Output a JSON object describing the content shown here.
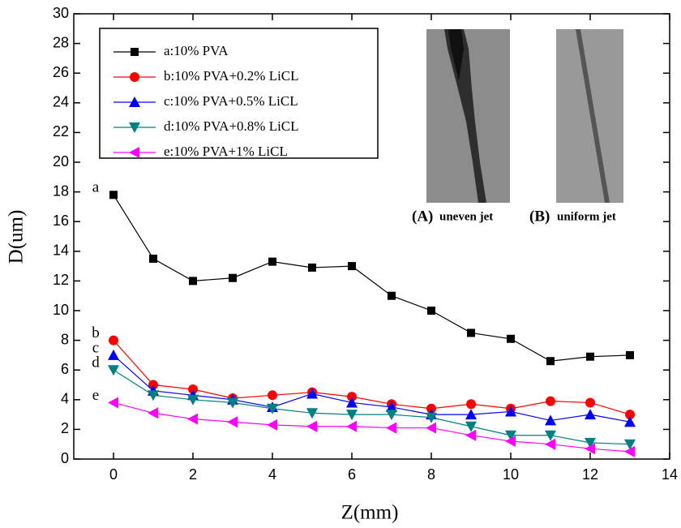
{
  "chart_data": {
    "type": "line",
    "x_label": "Z(mm)",
    "y_label": "D(um)",
    "xlim": [
      -1,
      14
    ],
    "xticks": [
      0,
      2,
      4,
      6,
      8,
      10,
      12,
      14
    ],
    "ylim": [
      0,
      30
    ],
    "yticks": [
      0,
      2,
      4,
      6,
      8,
      10,
      12,
      14,
      16,
      18,
      20,
      22,
      24,
      26,
      28,
      30
    ],
    "x": [
      0,
      1,
      2,
      3,
      4,
      5,
      6,
      7,
      8,
      9,
      10,
      11,
      12,
      13
    ],
    "series": [
      {
        "name": "a:10% PVA",
        "color": "#000000",
        "marker": "square",
        "values": [
          17.8,
          13.5,
          12.0,
          12.2,
          13.3,
          12.9,
          13.0,
          11.0,
          10.0,
          8.5,
          8.1,
          6.6,
          6.9,
          7.0
        ]
      },
      {
        "name": "b:10% PVA+0.2% LiCL",
        "color": "#ff0000",
        "marker": "circle",
        "values": [
          8.0,
          5.0,
          4.7,
          4.1,
          4.3,
          4.5,
          4.2,
          3.7,
          3.4,
          3.7,
          3.4,
          3.9,
          3.8,
          3.0
        ]
      },
      {
        "name": "c:10% PVA+0.5% LiCL",
        "color": "#0000ff",
        "marker": "triangle-up",
        "values": [
          7.0,
          4.6,
          4.3,
          4.0,
          3.5,
          4.4,
          3.8,
          3.5,
          3.0,
          3.0,
          3.2,
          2.6,
          3.0,
          2.5
        ]
      },
      {
        "name": "d:10% PVA+0.8% LiCL",
        "color": "#008080",
        "marker": "triangle-down",
        "values": [
          6.0,
          4.3,
          4.0,
          3.8,
          3.4,
          3.1,
          3.0,
          3.0,
          2.8,
          2.2,
          1.6,
          1.6,
          1.1,
          1.0
        ]
      },
      {
        "name": "e:10% PVA+1% LiCL",
        "color": "#ff00ff",
        "marker": "triangle-left",
        "values": [
          3.8,
          3.1,
          2.7,
          2.5,
          2.3,
          2.2,
          2.2,
          2.1,
          2.1,
          1.6,
          1.2,
          1.0,
          0.7,
          0.5
        ]
      }
    ],
    "annotations": [
      "a",
      "b",
      "c",
      "d",
      "e"
    ],
    "inset_labels": [
      {
        "tag": "(A)",
        "text": "uneven jet"
      },
      {
        "tag": "(B)",
        "text": "uniform jet"
      }
    ]
  }
}
